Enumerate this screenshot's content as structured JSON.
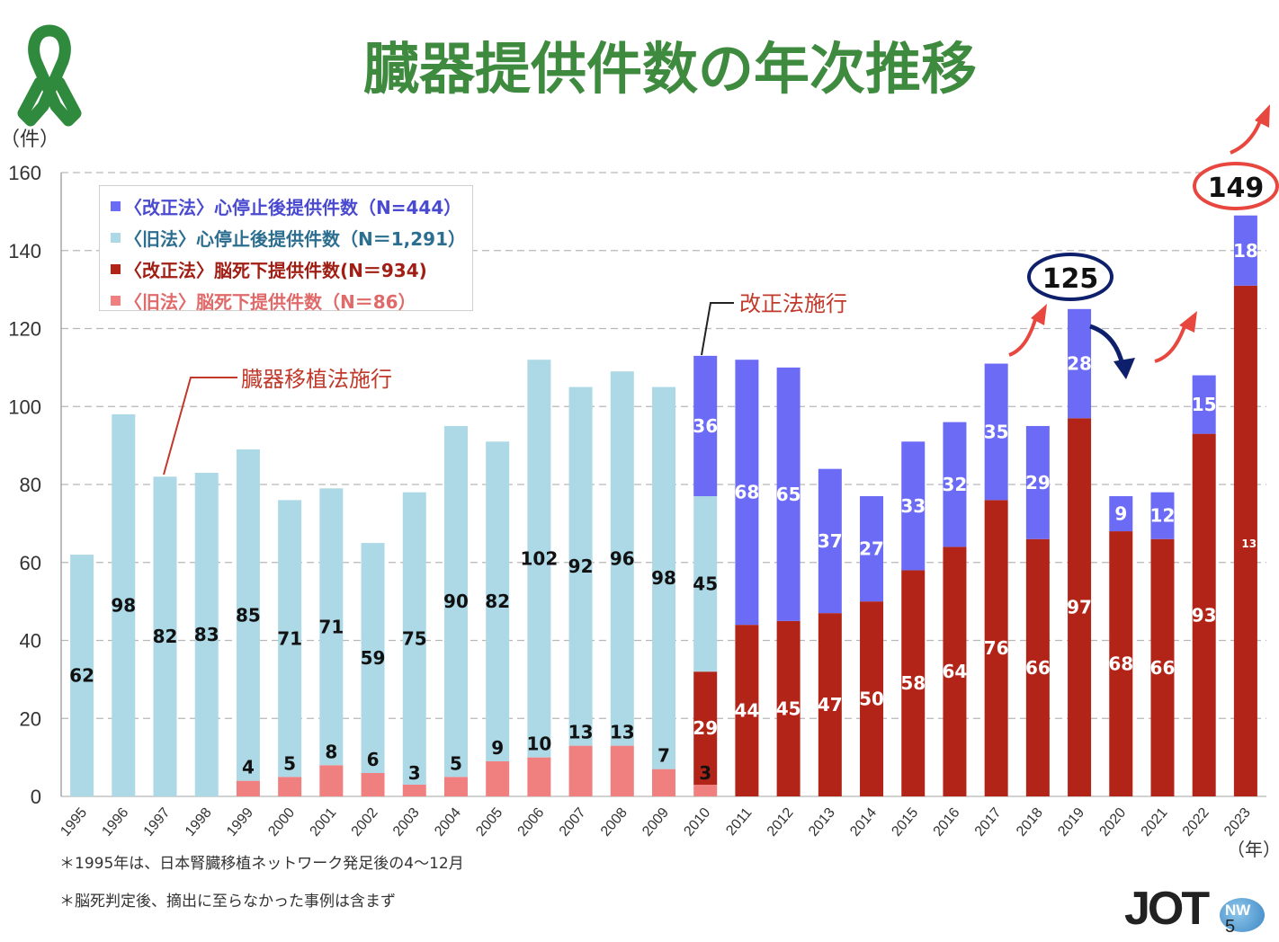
{
  "title": "臓器提供件数の年次推移",
  "y_unit_label": "（件）",
  "x_unit_label": "（年）",
  "colors": {
    "title_green": "#3e8a3e",
    "ribbon_green": "#2f8a3e",
    "new_cardiac": "#6b6bf5",
    "old_cardiac": "#add8e6",
    "new_brain": "#b22418",
    "old_brain": "#f08080",
    "annotation_red": "#c0392b",
    "arrow_red": "#e8473f",
    "arrow_navy": "#0e1f6b",
    "grid": "#b8b8b8"
  },
  "legend": [
    {
      "label": "〈改正法〉心停止後提供件数（N=444）",
      "color": "#6b6bf5",
      "text_color": "#4a4ad0"
    },
    {
      "label": "〈旧法〉心停止後提供件数（N＝1,291）",
      "color": "#add8e6",
      "text_color": "#2b6e8f"
    },
    {
      "label": "〈改正法〉脳死下提供件数(N＝934)",
      "color": "#b22418",
      "text_color": "#a01e14"
    },
    {
      "label": "〈旧法〉脳死下提供件数（N＝86）",
      "color": "#f08080",
      "text_color": "#e06a6a"
    }
  ],
  "annotations": {
    "law_enacted": "臓器移植法施行",
    "law_revised": "改正法施行",
    "highlight_2019": "125",
    "highlight_2023": "149"
  },
  "footnotes": [
    "＊1995年は、日本腎臓移植ネットワーク発足後の4～12月",
    "＊脳死判定後、摘出に至らなかった事例は含まず"
  ],
  "logo": {
    "text": "JOT",
    "circle_text": "NW"
  },
  "page_number": "5",
  "chart_data": {
    "type": "bar",
    "stacked": true,
    "ylim": [
      0,
      160
    ],
    "yticks": [
      0,
      20,
      40,
      60,
      80,
      100,
      120,
      140,
      160
    ],
    "grid": true,
    "legend_position": "top-left",
    "categories": [
      "1995",
      "1996",
      "1997",
      "1998",
      "1999",
      "2000",
      "2001",
      "2002",
      "2003",
      "2004",
      "2005",
      "2006",
      "2007",
      "2008",
      "2009",
      "2010",
      "2011",
      "2012",
      "2013",
      "2014",
      "2015",
      "2016",
      "2017",
      "2018",
      "2019",
      "2020",
      "2021",
      "2022",
      "2023"
    ],
    "series": [
      {
        "name": "〈旧法〉脳死下提供件数（N＝86）",
        "key": "old_brain",
        "values": [
          0,
          0,
          0,
          0,
          4,
          5,
          8,
          6,
          3,
          5,
          9,
          10,
          13,
          13,
          7,
          3,
          0,
          0,
          0,
          0,
          0,
          0,
          0,
          0,
          0,
          0,
          0,
          0,
          0
        ]
      },
      {
        "name": "〈改正法〉脳死下提供件数(N＝934)",
        "key": "new_brain",
        "values": [
          0,
          0,
          0,
          0,
          0,
          0,
          0,
          0,
          0,
          0,
          0,
          0,
          0,
          0,
          0,
          29,
          44,
          45,
          47,
          50,
          58,
          64,
          76,
          66,
          97,
          68,
          66,
          93,
          131
        ]
      },
      {
        "name": "〈旧法〉心停止後提供件数（N＝1,291）",
        "key": "old_cardiac",
        "values": [
          62,
          98,
          82,
          83,
          85,
          71,
          71,
          59,
          75,
          90,
          82,
          102,
          92,
          96,
          98,
          45,
          0,
          0,
          0,
          0,
          0,
          0,
          0,
          0,
          0,
          0,
          0,
          0,
          0
        ]
      },
      {
        "name": "〈改正法〉心停止後提供件数（N=444）",
        "key": "new_cardiac",
        "values": [
          0,
          0,
          0,
          0,
          0,
          0,
          0,
          0,
          0,
          0,
          0,
          0,
          0,
          0,
          0,
          36,
          68,
          65,
          37,
          27,
          33,
          32,
          35,
          29,
          28,
          9,
          12,
          15,
          18
        ]
      }
    ]
  }
}
